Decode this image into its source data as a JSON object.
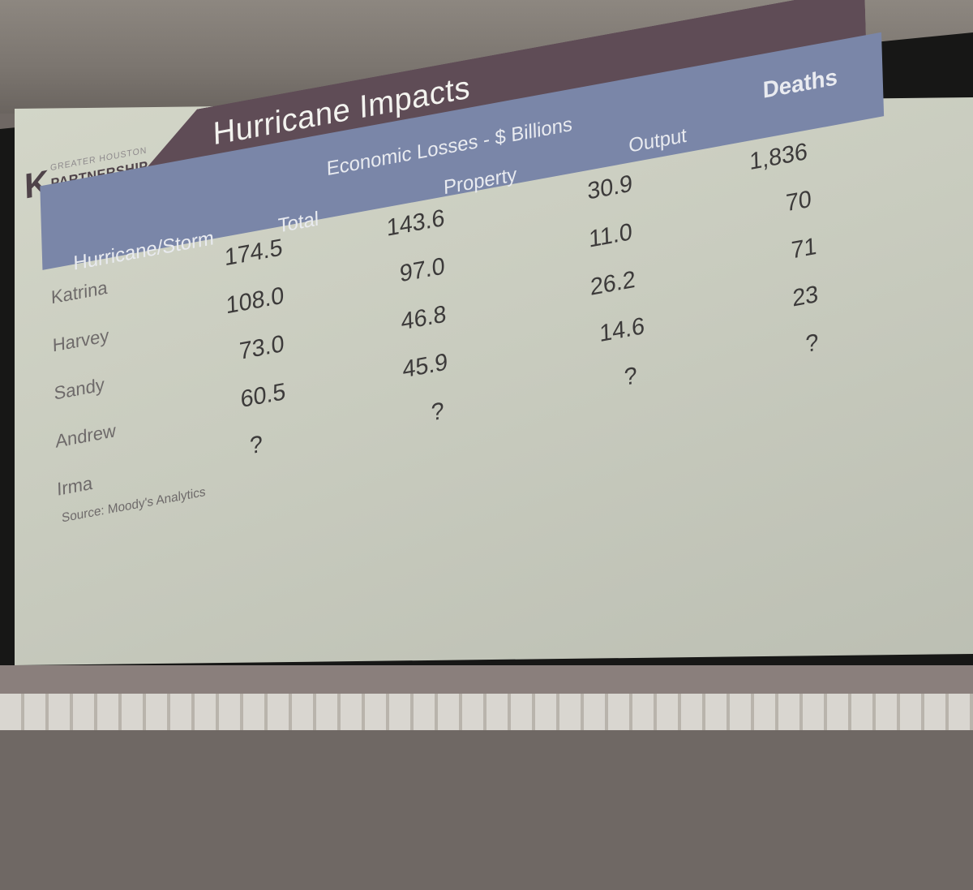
{
  "slide": {
    "title": "Hurricane Impacts",
    "logo": {
      "line1": "GREATER HOUSTON",
      "line2": "PARTNERSHIP",
      "mark": "K"
    },
    "group_header": "Economic Losses - $ Billions",
    "columns": [
      "Hurricane/Storm",
      "Total",
      "Property",
      "Output",
      "Deaths"
    ],
    "rows": [
      {
        "name": "Katrina",
        "total": "174.5",
        "property": "143.6",
        "output": "30.9",
        "deaths": "1,836"
      },
      {
        "name": "Harvey",
        "total": "108.0",
        "property": "97.0",
        "output": "11.0",
        "deaths": "70"
      },
      {
        "name": "Sandy",
        "total": "73.0",
        "property": "46.8",
        "output": "26.2",
        "deaths": "71"
      },
      {
        "name": "Andrew",
        "total": "60.5",
        "property": "45.9",
        "output": "14.6",
        "deaths": "23"
      },
      {
        "name": "Irma",
        "total": "?",
        "property": "?",
        "output": "?",
        "deaths": "?"
      }
    ],
    "source": "Source: Moody's Analytics"
  },
  "colors": {
    "title_band": "#5f4c56",
    "header_band": "#7a86a8",
    "screen": "#cfd2c5",
    "frame": "#171716"
  }
}
